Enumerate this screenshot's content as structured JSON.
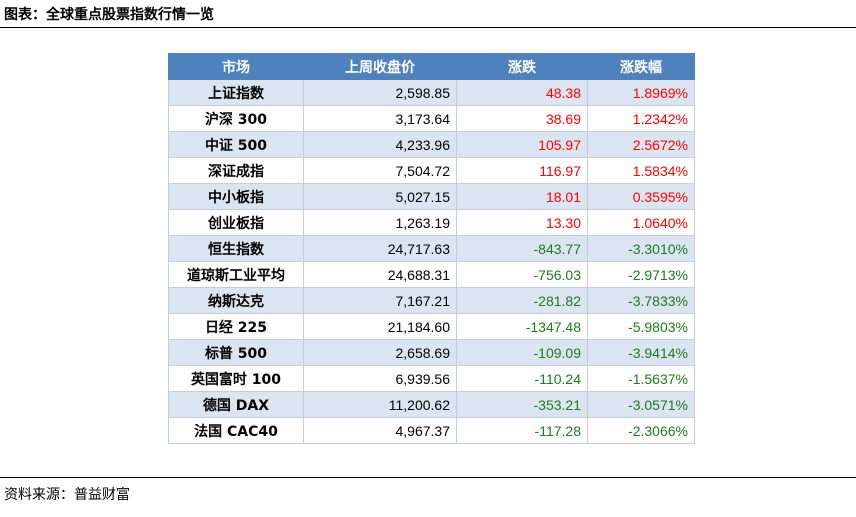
{
  "title": "图表：全球重点股票指数行情一览",
  "source": "资料来源：普益财富",
  "table": {
    "headers": [
      "市场",
      "上周收盘价",
      "涨跌",
      "涨跌幅"
    ],
    "rows": [
      {
        "name": "上证指数",
        "close": "2,598.85",
        "change": "48.38",
        "pct": "1.8969%",
        "dir": "up"
      },
      {
        "name": "沪深 300",
        "close": "3,173.64",
        "change": "38.69",
        "pct": "1.2342%",
        "dir": "up"
      },
      {
        "name": "中证 500",
        "close": "4,233.96",
        "change": "105.97",
        "pct": "2.5672%",
        "dir": "up"
      },
      {
        "name": "深证成指",
        "close": "7,504.72",
        "change": "116.97",
        "pct": "1.5834%",
        "dir": "up"
      },
      {
        "name": "中小板指",
        "close": "5,027.15",
        "change": "18.01",
        "pct": "0.3595%",
        "dir": "up"
      },
      {
        "name": "创业板指",
        "close": "1,263.19",
        "change": "13.30",
        "pct": "1.0640%",
        "dir": "up"
      },
      {
        "name": "恒生指数",
        "close": "24,717.63",
        "change": "-843.77",
        "pct": "-3.3010%",
        "dir": "down"
      },
      {
        "name": "道琼斯工业平均",
        "close": "24,688.31",
        "change": "-756.03",
        "pct": "-2.9713%",
        "dir": "down"
      },
      {
        "name": "纳斯达克",
        "close": "7,167.21",
        "change": "-281.82",
        "pct": "-3.7833%",
        "dir": "down"
      },
      {
        "name": "日经 225",
        "close": "21,184.60",
        "change": "-1347.48",
        "pct": "-5.9803%",
        "dir": "down"
      },
      {
        "name": "标普 500",
        "close": "2,658.69",
        "change": "-109.09",
        "pct": "-3.9414%",
        "dir": "down"
      },
      {
        "name": "英国富时 100",
        "close": "6,939.56",
        "change": "-110.24",
        "pct": "-1.5637%",
        "dir": "down"
      },
      {
        "name": "德国 DAX",
        "close": "11,200.62",
        "change": "-353.21",
        "pct": "-3.0571%",
        "dir": "down"
      },
      {
        "name": "法国 CAC40",
        "close": "4,967.37",
        "change": "-117.28",
        "pct": "-2.3066%",
        "dir": "down"
      }
    ]
  },
  "colors": {
    "header_bg": "#4f81bd",
    "row_alt": "#dbe5f1",
    "up": "#ff0000",
    "down": "#1e7a1e"
  }
}
